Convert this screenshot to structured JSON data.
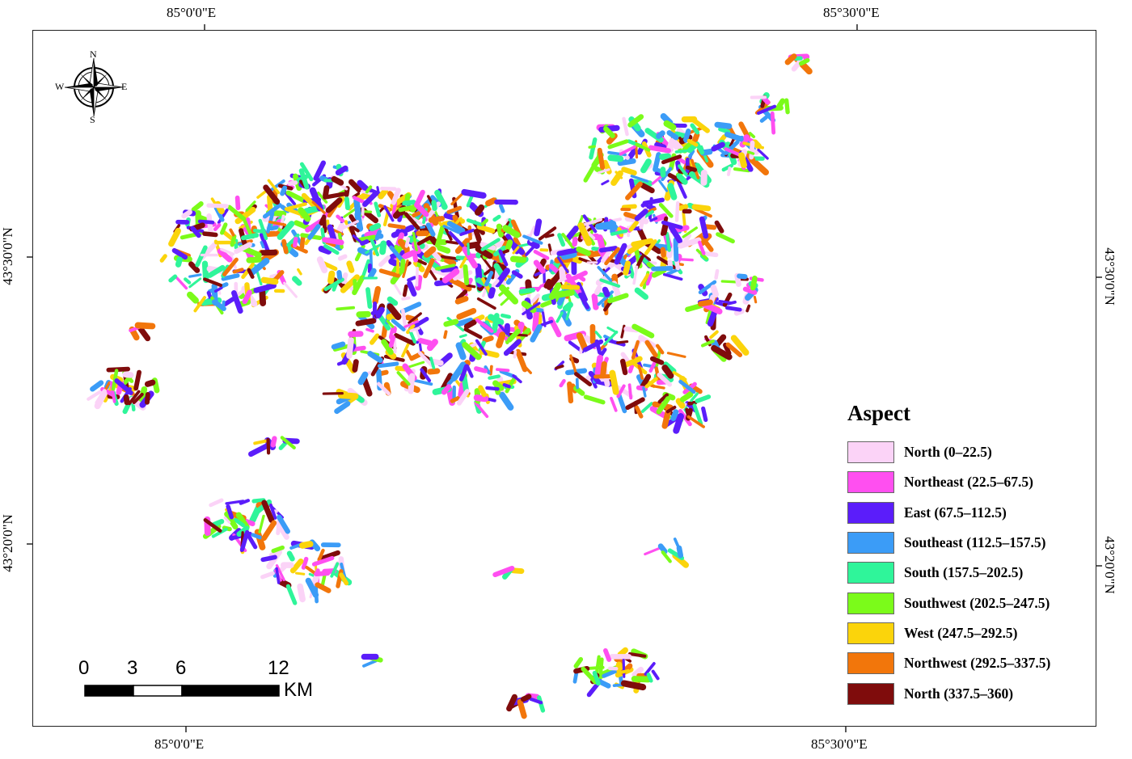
{
  "coordinates": {
    "top_left_lon": "85°0'0\"E",
    "top_right_lon": "85°30'0\"E",
    "bottom_left_lon": "85°0'0\"E",
    "bottom_right_lon": "85°30'0\"E",
    "left_upper_lat": "43°30'0\"N",
    "left_lower_lat": "43°20'0\"N",
    "right_upper_lat": "43°30'0\"N",
    "right_lower_lat": "43°20'0\"N"
  },
  "compass": {
    "n": "N",
    "s": "S",
    "e": "E",
    "w": "W",
    "icon": "compass-rose-icon"
  },
  "scale_bar": {
    "ticks": [
      "0",
      "3",
      "6",
      "12"
    ],
    "unit": "KM"
  },
  "legend": {
    "title": "Aspect",
    "items": [
      {
        "label": "North (0–22.5)",
        "color": "#fbd3f7"
      },
      {
        "label": "Northeast (22.5–67.5)",
        "color": "#ff4ff0"
      },
      {
        "label": "East (67.5–112.5)",
        "color": "#5b1dfa"
      },
      {
        "label": "Southeast (112.5–157.5)",
        "color": "#3b9cf7"
      },
      {
        "label": "South (157.5–202.5)",
        "color": "#2ff59a"
      },
      {
        "label": "Southwest (202.5–247.5)",
        "color": "#7bfb1a"
      },
      {
        "label": "West (247.5–292.5)",
        "color": "#fbd40b"
      },
      {
        "label": "Northwest (292.5–337.5)",
        "color": "#f2760b"
      },
      {
        "label": "North (337.5–360)",
        "color": "#7f0c0c"
      }
    ]
  }
}
